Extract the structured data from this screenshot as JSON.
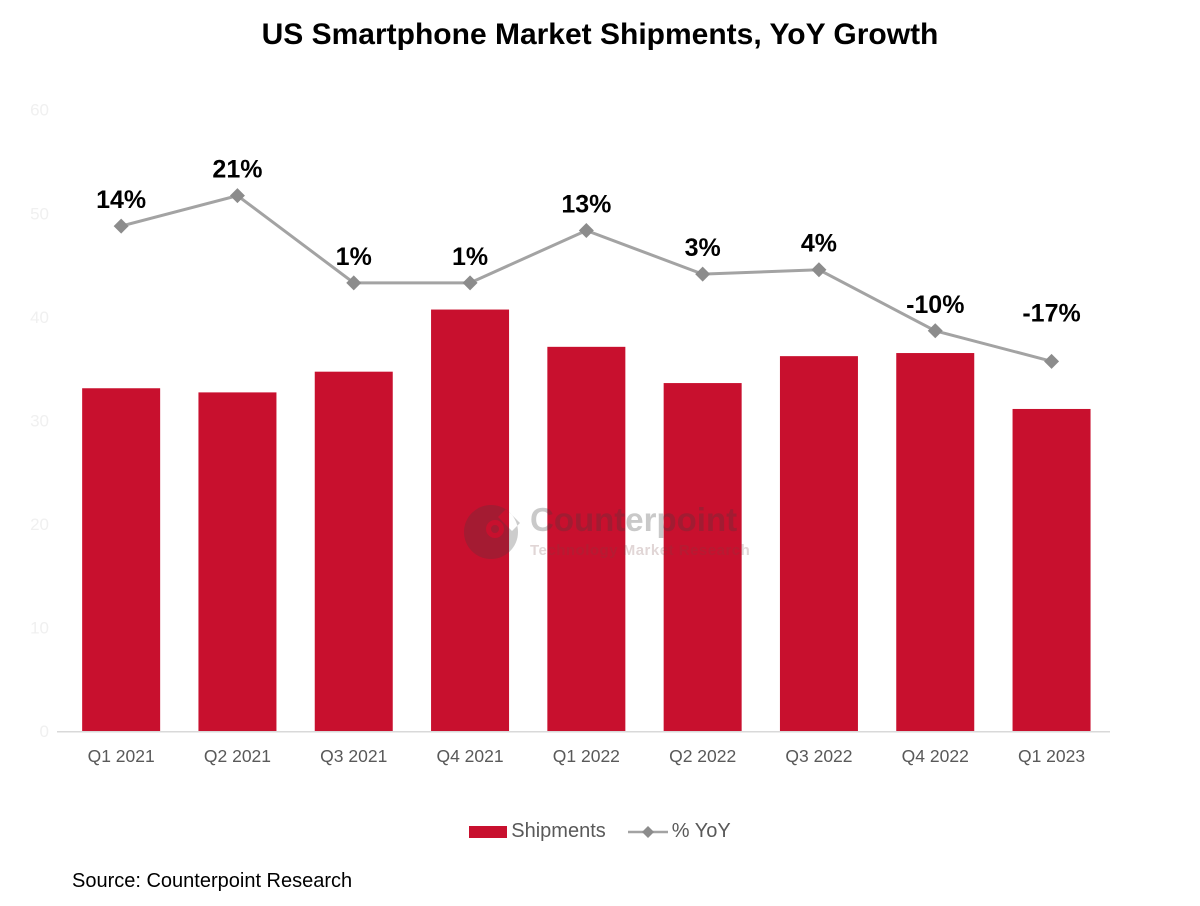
{
  "title": "US Smartphone Market Shipments, YoY Growth",
  "source": "Source: Counterpoint Research",
  "watermark": {
    "brand": "Counterpoint",
    "tagline": "Technology Market Research"
  },
  "legend": {
    "items": [
      {
        "label": "Shipments",
        "type": "bar"
      },
      {
        "label": "% YoY",
        "type": "line"
      }
    ],
    "position": "bottom"
  },
  "colors": {
    "bar": "#C8102E",
    "line": "#A3A3A3",
    "marker": "#8C8C8C",
    "x_label": "#595959",
    "y_tick_label": "#F0F0F0",
    "axis_line": "#D9D9D9",
    "data_label": "#000000",
    "title": "#000000",
    "legend_text": "#595959"
  },
  "chart_data": {
    "type": "combo-bar-line",
    "categories": [
      "Q1 2021",
      "Q2 2021",
      "Q3 2021",
      "Q4 2021",
      "Q1 2022",
      "Q2 2022",
      "Q3 2022",
      "Q4 2022",
      "Q1 2023"
    ],
    "series": [
      {
        "name": "Shipments",
        "type": "bar",
        "values": [
          33.1,
          32.7,
          34.7,
          40.7,
          37.1,
          33.6,
          36.2,
          36.5,
          31.1
        ]
      },
      {
        "name": "% YoY",
        "type": "line",
        "values": [
          14,
          21,
          1,
          1,
          13,
          3,
          4,
          -10,
          -17
        ],
        "point_labels": [
          "14%",
          "21%",
          "1%",
          "1%",
          "13%",
          "3%",
          "4%",
          "-10%",
          "-17%"
        ]
      }
    ],
    "left_axis": {
      "min": 0,
      "max": 60,
      "ticks": [
        0,
        10,
        20,
        30,
        40,
        50,
        60
      ]
    },
    "secondary_axis_hidden": true,
    "line_axis_mapping": {
      "left_value_at_0pct": 42.86,
      "left_units_per_pct": 0.4211
    },
    "gridlines": false,
    "legend_position": "bottom"
  }
}
